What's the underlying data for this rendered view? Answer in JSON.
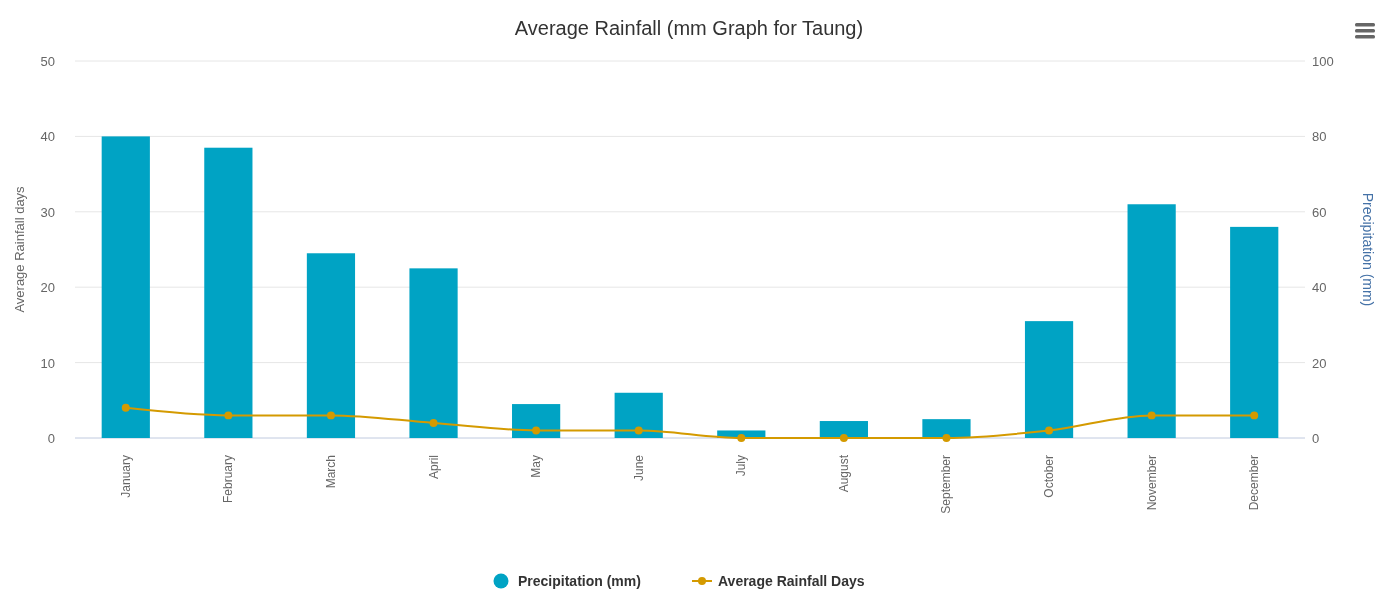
{
  "chart_data": {
    "type": "bar",
    "title": "Average Rainfall (mm Graph for Taung)",
    "ylabel": "Average Rainfall days",
    "y2label": "Precipitation (mm)",
    "categories": [
      "January",
      "February",
      "March",
      "April",
      "May",
      "June",
      "July",
      "August",
      "September",
      "October",
      "November",
      "December"
    ],
    "series": [
      {
        "name": "Precipitation (mm)",
        "axis": "y2",
        "color": "#00a3c4",
        "values": [
          80,
          77,
          49,
          45,
          9,
          12,
          2,
          4.5,
          5,
          31,
          62,
          56
        ]
      },
      {
        "name": "Average Rainfall Days",
        "type": "line",
        "axis": "y",
        "color": "#d49a00",
        "values": [
          4,
          3,
          3,
          2,
          1,
          1,
          0,
          0,
          0,
          1,
          3,
          3
        ]
      }
    ],
    "ylim": [
      0,
      50
    ],
    "yticks": [
      0,
      10,
      20,
      30,
      40,
      50
    ],
    "y2lim": [
      0,
      100
    ],
    "y2ticks": [
      0,
      20,
      40,
      60,
      80,
      100
    ],
    "grid": "y",
    "legend": "bottom",
    "marker": "circle",
    "line_style": "solid"
  }
}
